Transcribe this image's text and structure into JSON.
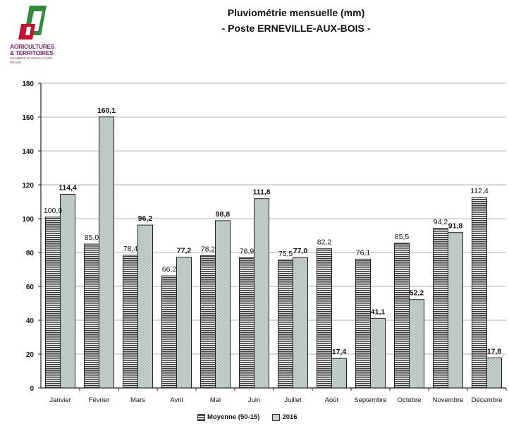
{
  "logo": {
    "line1": "AGRICULTURES",
    "line2": "& TERRITOIRES",
    "line3": "CHAMBRE D'AGRICULTURE MEUSE"
  },
  "chart_data": {
    "type": "bar",
    "title": "Pluviométrie mensuelle (mm)",
    "subtitle": "- Poste ERNEVILLE-AUX-BOIS -",
    "categories": [
      "Janvier",
      "Février",
      "Mars",
      "Avril",
      "Mai",
      "Juin",
      "Juillet",
      "Août",
      "Septembre",
      "Octobre",
      "Novembre",
      "Décembre"
    ],
    "series": [
      {
        "name": "Moyenne (50-15)",
        "values": [
          100.9,
          85.0,
          78.4,
          66.2,
          78.2,
          76.9,
          75.5,
          82.2,
          76.1,
          85.5,
          94.2,
          112.4
        ],
        "labels": [
          "100,9",
          "85,0",
          "78,4",
          "66,2",
          "78,2",
          "76,9",
          "75,5",
          "82,2",
          "76,1",
          "85,5",
          "94,2",
          "112,4"
        ]
      },
      {
        "name": "2016",
        "values": [
          114.4,
          160.1,
          96.2,
          77.2,
          98.8,
          111.8,
          77.0,
          17.4,
          41.1,
          52.2,
          91.8,
          17.8
        ],
        "labels": [
          "114,4",
          "160,1",
          "96,2",
          "77,2",
          "98,8",
          "111,8",
          "77,0",
          "17,4",
          "41,1",
          "52,2",
          "91,8",
          "17,8"
        ]
      }
    ],
    "yticks": [
      "0",
      "20",
      "40",
      "60",
      "80",
      "100",
      "120",
      "140",
      "160",
      "180"
    ],
    "ylim": [
      0,
      180
    ],
    "grid": true,
    "legend_position": "bottom",
    "colors": {
      "moyenne": "#555555",
      "y2016": "#c9d4cf",
      "axis": "#222222",
      "grid": "#9a9a9a"
    }
  }
}
